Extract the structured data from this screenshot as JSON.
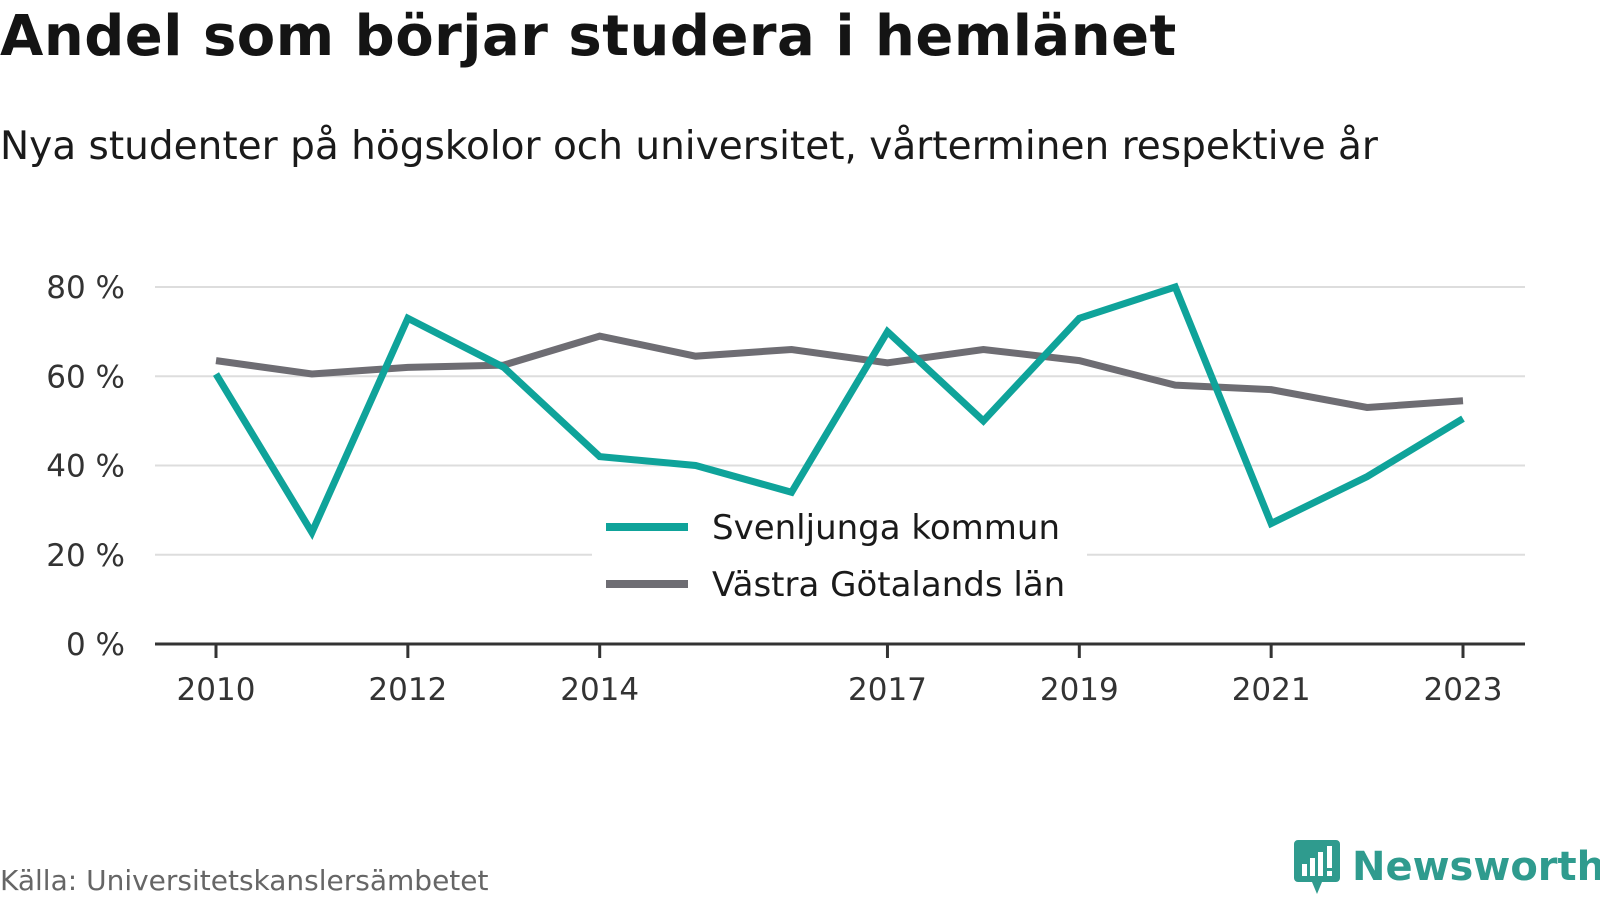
{
  "title": "Andel som börjar studera i hemlänet",
  "subtitle": "Nya studenter på högskolor och universitet, vårterminen respektive år",
  "source": "Källa: Universitetskanslersämbetet",
  "brand": {
    "name": "Newsworthy",
    "icon": "newsworthy-logo-icon",
    "color": "#2f9b8e"
  },
  "chart_data": {
    "type": "line",
    "x": [
      2010,
      2011,
      2012,
      2013,
      2014,
      2015,
      2016,
      2017,
      2018,
      2019,
      2020,
      2021,
      2022,
      2023
    ],
    "x_tick_labels": [
      "2010",
      "2012",
      "2014",
      "2017",
      "2019",
      "2021",
      "2023"
    ],
    "y_tick_values": [
      0,
      20,
      40,
      60,
      80
    ],
    "y_tick_labels": [
      "0 %",
      "20 %",
      "40 %",
      "60 %",
      "80 %"
    ],
    "ylim": [
      0,
      80
    ],
    "grid": true,
    "legend_position": "center-bottom",
    "series": [
      {
        "name": "Svenljunga kommun",
        "color": "#0fa39a",
        "values": [
          60.5,
          25,
          73,
          62,
          42,
          40,
          34,
          70,
          50,
          73,
          80,
          27,
          37.5,
          50.5
        ]
      },
      {
        "name": "Västra Götalands län",
        "color": "#6e6d73",
        "values": [
          63.5,
          60.5,
          62,
          62.5,
          69,
          64.5,
          66,
          63,
          66,
          63.5,
          58,
          57,
          53,
          54.5
        ]
      }
    ]
  }
}
